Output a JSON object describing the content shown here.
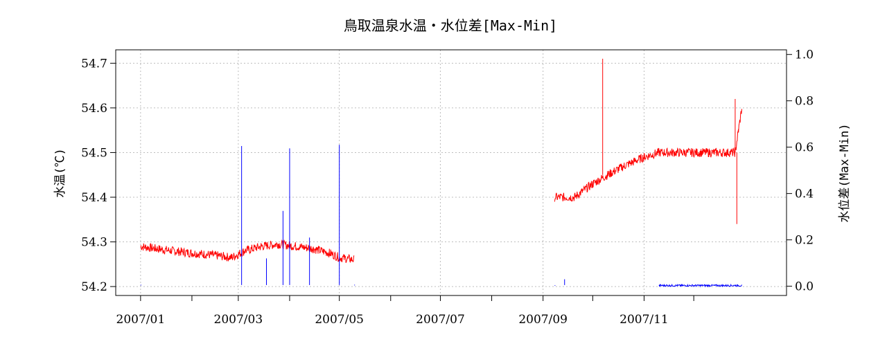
{
  "chart_data": {
    "type": "line",
    "title": "鳥取温泉水温・水位差[Max-Min]",
    "ylabel_left": "水温(℃)",
    "ylabel_right": "水位差(Max-Min)",
    "x_tick_labels": [
      "2007/01",
      "2007/03",
      "2007/05",
      "2007/07",
      "2007/09",
      "2007/11"
    ],
    "x_tick_months": [
      "2007-01",
      "2007-02",
      "2007-03",
      "2007-04",
      "2007-05",
      "2007-06",
      "2007-07",
      "2007-08",
      "2007-09",
      "2007-10",
      "2007-11",
      "2007-12"
    ],
    "xlim": [
      "2006-12-17",
      "2008-01-26"
    ],
    "ylim_left": [
      54.18,
      54.73
    ],
    "ylim_right": [
      -0.04,
      1.02
    ],
    "y_ticks_left": [
      "54.2",
      "54.3",
      "54.4",
      "54.5",
      "54.6",
      "54.7"
    ],
    "y_ticks_right": [
      "0.0",
      "0.2",
      "0.4",
      "0.6",
      "0.8",
      "1.0"
    ],
    "grid": true,
    "series": [
      {
        "axis": "left",
        "color": "#ff0000",
        "points": [
          [
            "2007-01-01",
            54.29
          ],
          [
            "2007-01-10",
            54.285
          ],
          [
            "2007-01-20",
            54.28
          ],
          [
            "2007-02-01",
            54.275
          ],
          [
            "2007-02-15",
            54.27
          ],
          [
            "2007-02-25",
            54.265
          ],
          [
            "2007-03-05",
            54.28
          ],
          [
            "2007-03-15",
            54.29
          ],
          [
            "2007-03-25",
            54.295
          ],
          [
            "2007-04-05",
            54.29
          ],
          [
            "2007-04-15",
            54.285
          ],
          [
            "2007-04-25",
            54.275
          ],
          [
            "2007-05-01",
            54.265
          ],
          [
            "2007-05-10",
            54.26
          ],
          [
            "2007-09-08",
            54.4
          ],
          [
            "2007-09-20",
            54.4
          ],
          [
            "2007-10-01",
            54.43
          ],
          [
            "2007-10-10",
            54.45
          ],
          [
            "2007-10-20",
            54.47
          ],
          [
            "2007-11-01",
            54.49
          ],
          [
            "2007-11-10",
            54.5
          ],
          [
            "2007-12-26",
            54.5
          ],
          [
            "2007-12-28",
            54.55
          ],
          [
            "2007-12-30",
            54.6
          ]
        ],
        "spikes": [
          [
            "2007-10-07",
            54.71
          ],
          [
            "2007-12-27",
            54.34
          ],
          [
            "2007-12-26",
            54.62
          ]
        ]
      },
      {
        "axis": "right",
        "color": "#0000ff",
        "points": [
          [
            "2007-01-01",
            0.005
          ],
          [
            "2007-05-10",
            0.005
          ],
          [
            "2007-09-08",
            0.003
          ],
          [
            "2007-11-10",
            0.003
          ],
          [
            "2007-12-26",
            0.003
          ],
          [
            "2007-12-30",
            0.003
          ]
        ],
        "spikes": [
          [
            "2007-03-03",
            0.605
          ],
          [
            "2007-03-28",
            0.325
          ],
          [
            "2007-04-01",
            0.595
          ],
          [
            "2007-04-31",
            0.61
          ],
          [
            "2007-03-18",
            0.12
          ],
          [
            "2007-04-13",
            0.21
          ],
          [
            "2007-09-14",
            0.03
          ]
        ]
      }
    ]
  }
}
